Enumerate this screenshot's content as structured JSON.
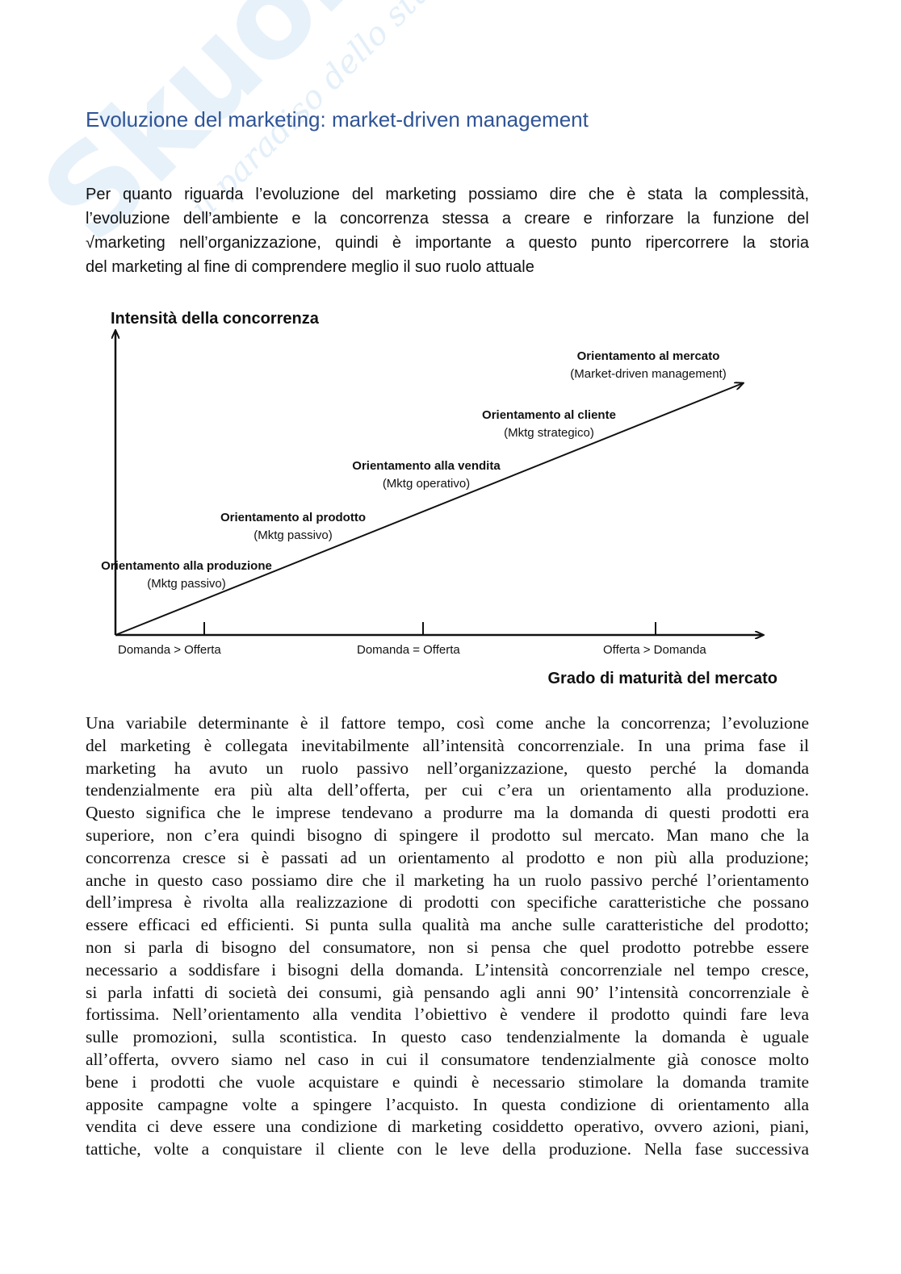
{
  "watermark": {
    "brand": "Skuola.net",
    "tagline": "il paradiso dello studente"
  },
  "title": "Evoluzione del marketing: market-driven management",
  "intro_lines": [
    "Per quanto riguarda l’evoluzione del marketing possiamo dire che è stata la complessità,",
    "l’evoluzione dell’ambiente e la concorrenza stessa a creare e rinforzare la funzione del",
    "√marketing nell’organizzazione, quindi è importante a questo punto ripercorrere la storia",
    "del marketing al fine di comprendere meglio il suo ruolo attuale"
  ],
  "diagram": {
    "y_axis_title": "Intensità della concorrenza",
    "x_axis_title": "Grado di maturità del mercato",
    "x_ticks": [
      "Domanda > Offerta",
      "Domanda = Offerta",
      "Offerta > Domanda"
    ],
    "stages": [
      {
        "name": "Orientamento alla produzione",
        "sub": "(Mktg passivo)"
      },
      {
        "name": "Orientamento al prodotto",
        "sub": "(Mktg passivo)"
      },
      {
        "name": "Orientamento alla vendita",
        "sub": "(Mktg operativo)"
      },
      {
        "name": "Orientamento al cliente",
        "sub": "(Mktg strategico)"
      },
      {
        "name": "Orientamento al mercato",
        "sub": "(Market-driven management)"
      }
    ]
  },
  "body_lines": [
    "Una variabile determinante è il fattore tempo, così come anche la concorrenza; l’evoluzione",
    "del marketing è collegata inevitabilmente all’intensità concorrenziale. In una prima fase il",
    "marketing ha avuto un ruolo passivo nell’organizzazione, questo perché la domanda",
    "tendenzialmente era più alta dell’offerta, per cui c’era un orientamento alla produzione.",
    "Questo significa che le imprese tendevano a produrre ma la domanda di questi prodotti era",
    "superiore, non c’era quindi bisogno di spingere il prodotto sul mercato. Man mano che la",
    "concorrenza cresce si è passati ad un orientamento al prodotto e non più alla produzione;",
    "anche in questo caso possiamo dire che il marketing ha un ruolo passivo perché l’orientamento",
    "dell’impresa è rivolta alla realizzazione di prodotti con specifiche caratteristiche che possano",
    "essere efficaci ed efficienti. Si punta sulla qualità ma anche sulle caratteristiche del prodotto;",
    "non si parla di bisogno del consumatore, non si pensa che quel prodotto potrebbe essere",
    "necessario a soddisfare i bisogni della domanda. L’intensità concorrenziale nel tempo cresce,",
    "si parla infatti di società dei consumi, già pensando agli anni 90’ l’intensità concorrenziale è",
    "fortissima. Nell’orientamento alla vendita l’obiettivo è vendere il prodotto quindi fare leva",
    "sulle promozioni, sulla scontistica. In questo caso tendenzialmente la domanda è uguale",
    "all’offerta, ovvero siamo nel caso in cui il consumatore tendenzialmente già conosce molto",
    "bene i prodotti che vuole acquistare e quindi è necessario stimolare la domanda tramite",
    "apposite campagne volte a spingere l’acquisto. In questa condizione di orientamento alla",
    "vendita ci deve essere una condizione di marketing cosiddetto operativo, ovvero azioni, piani,",
    "tattiche, volte a conquistare il cliente con le leve della produzione. Nella fase successiva"
  ]
}
